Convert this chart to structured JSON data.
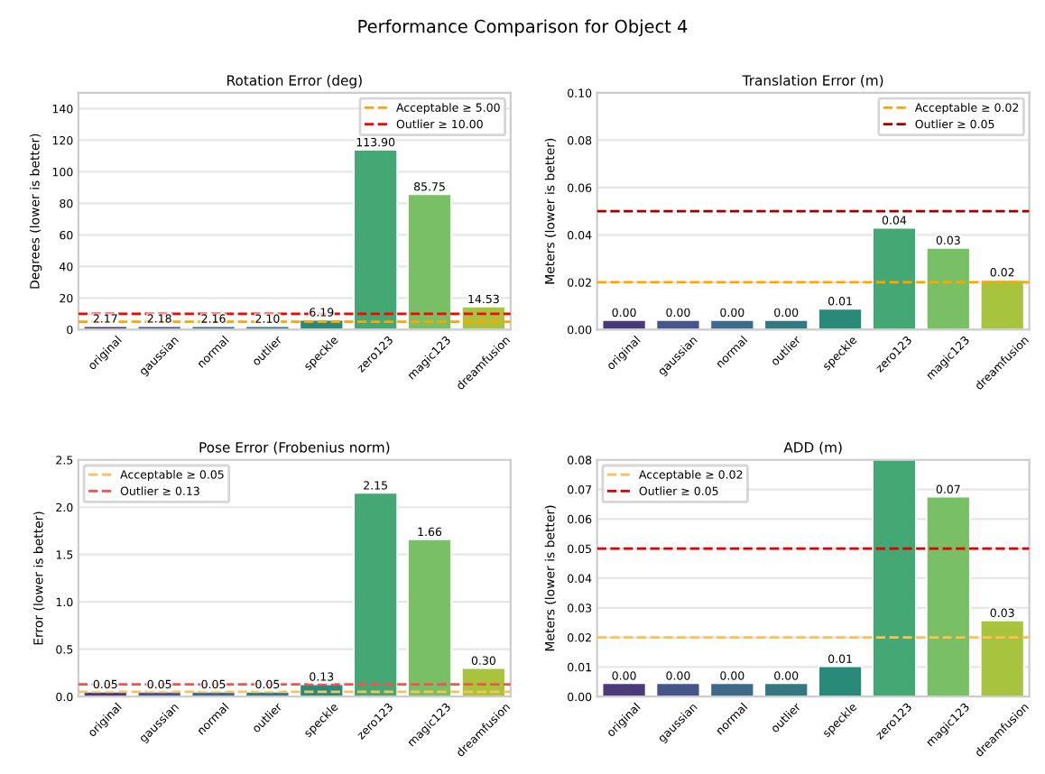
{
  "chart_data": [
    {
      "type": "bar",
      "title": "Rotation Error (deg)",
      "ylabel": "Degrees (lower is better)",
      "categories": [
        "original",
        "gaussian",
        "normal",
        "outlier",
        "speckle",
        "zero123",
        "magic123",
        "dreamfusion"
      ],
      "values": [
        2.17,
        2.18,
        2.16,
        2.1,
        6.19,
        113.9,
        85.75,
        14.53
      ],
      "colors": [
        "#4b3a7a",
        "#46558a",
        "#3d6a89",
        "#347882",
        "#2a8a7a",
        "#43a873",
        "#79bf65",
        "#a8c43f"
      ],
      "value_labels": [
        "2.17",
        "2.18",
        "2.16",
        "2.10",
        "6.19",
        "113.90",
        "85.75",
        "14.53"
      ],
      "ylim": [
        0,
        150
      ],
      "yticks": [
        0,
        20,
        40,
        60,
        80,
        100,
        120,
        140
      ],
      "ref_lines": [
        {
          "axis": "y",
          "value": 5.0,
          "label": "Acceptable ≥ 5.00",
          "color": "#ffa500",
          "line_style": "dashed"
        },
        {
          "axis": "y",
          "value": 10.0,
          "label": "Outlier ≥ 10.00",
          "color": "#ff0000",
          "line_style": "dashed"
        }
      ],
      "grid": "y",
      "legend": "top right"
    },
    {
      "type": "bar",
      "title": "Translation Error (m)",
      "ylabel": "Meters (lower is better)",
      "categories": [
        "original",
        "gaussian",
        "normal",
        "outlier",
        "speckle",
        "zero123",
        "magic123",
        "dreamfusion"
      ],
      "values": [
        0.004,
        0.004,
        0.004,
        0.004,
        0.0088,
        0.043,
        0.0345,
        0.021
      ],
      "colors": [
        "#4b3a7a",
        "#46558a",
        "#3d6a89",
        "#347882",
        "#2a8a7a",
        "#43a873",
        "#79bf65",
        "#a8c43f"
      ],
      "value_labels": [
        "0.00",
        "0.00",
        "0.00",
        "0.00",
        "0.01",
        "0.04",
        "0.03",
        "0.02"
      ],
      "ylim": [
        0,
        0.1
      ],
      "yticks": [
        {
          "value": 0,
          "label": "0.00"
        },
        {
          "value": 0.02,
          "label": "0.02"
        },
        {
          "value": 0.04,
          "label": "0.04"
        },
        {
          "value": 0.06,
          "label": "0.06"
        },
        {
          "value": 0.08,
          "label": "0.08"
        },
        {
          "value": 0.1,
          "label": "0.10"
        }
      ],
      "ref_lines": [
        {
          "axis": "y",
          "value": 0.02,
          "label": "Acceptable ≥ 0.02",
          "color": "#ffa500",
          "line_style": "dashed"
        },
        {
          "axis": "y",
          "value": 0.05,
          "label": "Outlier ≥ 0.05",
          "color": "#a00000",
          "line_style": "dashed"
        }
      ],
      "grid": "y",
      "legend": "top right"
    },
    {
      "type": "bar",
      "title": "Pose Error (Frobenius norm)",
      "ylabel": "Error (lower is better)",
      "categories": [
        "original",
        "gaussian",
        "normal",
        "outlier",
        "speckle",
        "zero123",
        "magic123",
        "dreamfusion"
      ],
      "values": [
        0.05,
        0.05,
        0.05,
        0.05,
        0.13,
        2.15,
        1.66,
        0.3
      ],
      "colors": [
        "#4b3a7a",
        "#46558a",
        "#3d6a89",
        "#347882",
        "#2a8a7a",
        "#43a873",
        "#79bf65",
        "#a8c43f"
      ],
      "value_labels": [
        "0.05",
        "0.05",
        "0.05",
        "0.05",
        "0.13",
        "2.15",
        "1.66",
        "0.30"
      ],
      "ylim": [
        0,
        2.5
      ],
      "yticks": [
        {
          "value": 0,
          "label": "0.0"
        },
        {
          "value": 0.5,
          "label": "0.5"
        },
        {
          "value": 1.0,
          "label": "1.0"
        },
        {
          "value": 1.5,
          "label": "1.5"
        },
        {
          "value": 2.0,
          "label": "2.0"
        },
        {
          "value": 2.5,
          "label": "2.5"
        }
      ],
      "ref_lines": [
        {
          "axis": "y",
          "value": 0.05,
          "label": "Acceptable ≥ 0.05",
          "color": "#ffc04d",
          "line_style": "dashed"
        },
        {
          "axis": "y",
          "value": 0.13,
          "label": "Outlier ≥ 0.13",
          "color": "#ff4d4d",
          "line_style": "dashed"
        }
      ],
      "grid": "y",
      "legend": "top left"
    },
    {
      "type": "bar",
      "title": "ADD (m)",
      "ylabel": "Meters (lower is better)",
      "categories": [
        "original",
        "gaussian",
        "normal",
        "outlier",
        "speckle",
        "zero123",
        "magic123",
        "dreamfusion"
      ],
      "values": [
        0.0045,
        0.0045,
        0.0045,
        0.0045,
        0.0102,
        0.08,
        0.0675,
        0.0257
      ],
      "colors": [
        "#4b3a7a",
        "#46558a",
        "#3d6a89",
        "#347882",
        "#2a8a7a",
        "#43a873",
        "#79bf65",
        "#a8c43f"
      ],
      "value_labels": [
        "0.00",
        "0.00",
        "0.00",
        "0.00",
        "0.01",
        null,
        "0.07",
        "0.03"
      ],
      "ylim": [
        0,
        0.08
      ],
      "yticks": [
        {
          "value": 0,
          "label": "0.00"
        },
        {
          "value": 0.01,
          "label": "0.01"
        },
        {
          "value": 0.02,
          "label": "0.02"
        },
        {
          "value": 0.03,
          "label": "0.03"
        },
        {
          "value": 0.04,
          "label": "0.04"
        },
        {
          "value": 0.05,
          "label": "0.05"
        },
        {
          "value": 0.06,
          "label": "0.06"
        },
        {
          "value": 0.07,
          "label": "0.07"
        },
        {
          "value": 0.08,
          "label": "0.08"
        }
      ],
      "ref_lines": [
        {
          "axis": "y",
          "value": 0.02,
          "label": "Acceptable ≥ 0.02",
          "color": "#ffc04d",
          "line_style": "dashed"
        },
        {
          "axis": "y",
          "value": 0.05,
          "label": "Outlier ≥ 0.05",
          "color": "#e00000",
          "line_style": "dashed"
        }
      ],
      "grid": "y",
      "legend": "top left",
      "annotations": [
        "Performance Comparison for Object 4"
      ]
    }
  ]
}
